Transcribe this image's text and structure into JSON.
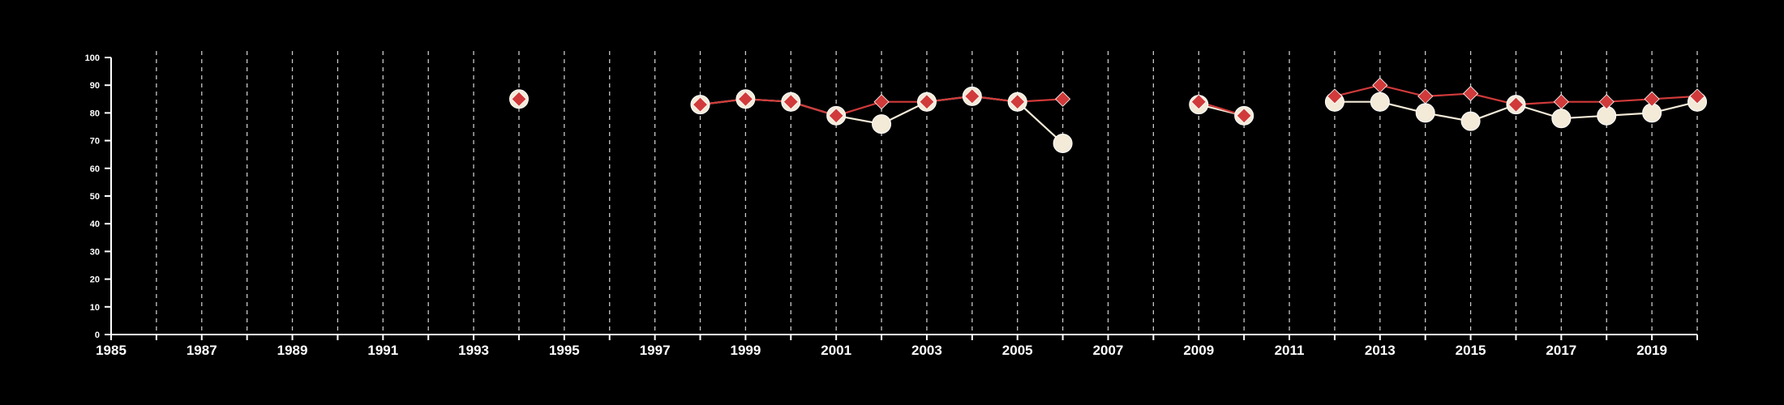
{
  "chart_data": {
    "type": "line",
    "x_ticks": [
      "1985",
      "1987",
      "1989",
      "1991",
      "1993",
      "1995",
      "1997",
      "1999",
      "2001",
      "2003",
      "2005",
      "2007",
      "2009",
      "2011",
      "2013",
      "2015",
      "2017",
      "2019"
    ],
    "y_ticks": [
      "0",
      "10",
      "20",
      "30",
      "40",
      "50",
      "60",
      "70",
      "80",
      "90",
      "100"
    ],
    "xlim": [
      1985,
      2020
    ],
    "ylim": [
      0,
      100
    ],
    "grid": "vertical dashed at each year",
    "series": [
      {
        "marker": "circle",
        "color": "#f4ead8",
        "points": [
          {
            "x": 1994,
            "y": 85
          },
          {
            "x": 1998,
            "y": 83
          },
          {
            "x": 1999,
            "y": 85
          },
          {
            "x": 2000,
            "y": 84
          },
          {
            "x": 2001,
            "y": 79
          },
          {
            "x": 2002,
            "y": 76
          },
          {
            "x": 2003,
            "y": 84
          },
          {
            "x": 2004,
            "y": 86
          },
          {
            "x": 2005,
            "y": 84
          },
          {
            "x": 2006,
            "y": 69
          },
          {
            "x": 2009,
            "y": 83
          },
          {
            "x": 2010,
            "y": 79
          },
          {
            "x": 2012,
            "y": 84
          },
          {
            "x": 2013,
            "y": 84
          },
          {
            "x": 2014,
            "y": 80
          },
          {
            "x": 2015,
            "y": 77
          },
          {
            "x": 2016,
            "y": 83
          },
          {
            "x": 2017,
            "y": 78
          },
          {
            "x": 2018,
            "y": 79
          },
          {
            "x": 2019,
            "y": 80
          },
          {
            "x": 2020,
            "y": 84
          }
        ]
      },
      {
        "marker": "diamond",
        "color": "#d13a3a",
        "points": [
          {
            "x": 1994,
            "y": 85
          },
          {
            "x": 1998,
            "y": 83
          },
          {
            "x": 1999,
            "y": 85
          },
          {
            "x": 2000,
            "y": 84
          },
          {
            "x": 2001,
            "y": 79
          },
          {
            "x": 2002,
            "y": 84
          },
          {
            "x": 2003,
            "y": 84
          },
          {
            "x": 2004,
            "y": 86
          },
          {
            "x": 2005,
            "y": 84
          },
          {
            "x": 2006,
            "y": 85
          },
          {
            "x": 2009,
            "y": 84
          },
          {
            "x": 2010,
            "y": 79
          },
          {
            "x": 2012,
            "y": 86
          },
          {
            "x": 2013,
            "y": 90
          },
          {
            "x": 2014,
            "y": 86
          },
          {
            "x": 2015,
            "y": 87
          },
          {
            "x": 2016,
            "y": 83
          },
          {
            "x": 2017,
            "y": 84
          },
          {
            "x": 2018,
            "y": 84
          },
          {
            "x": 2019,
            "y": 85
          },
          {
            "x": 2020,
            "y": 86
          }
        ]
      }
    ]
  }
}
